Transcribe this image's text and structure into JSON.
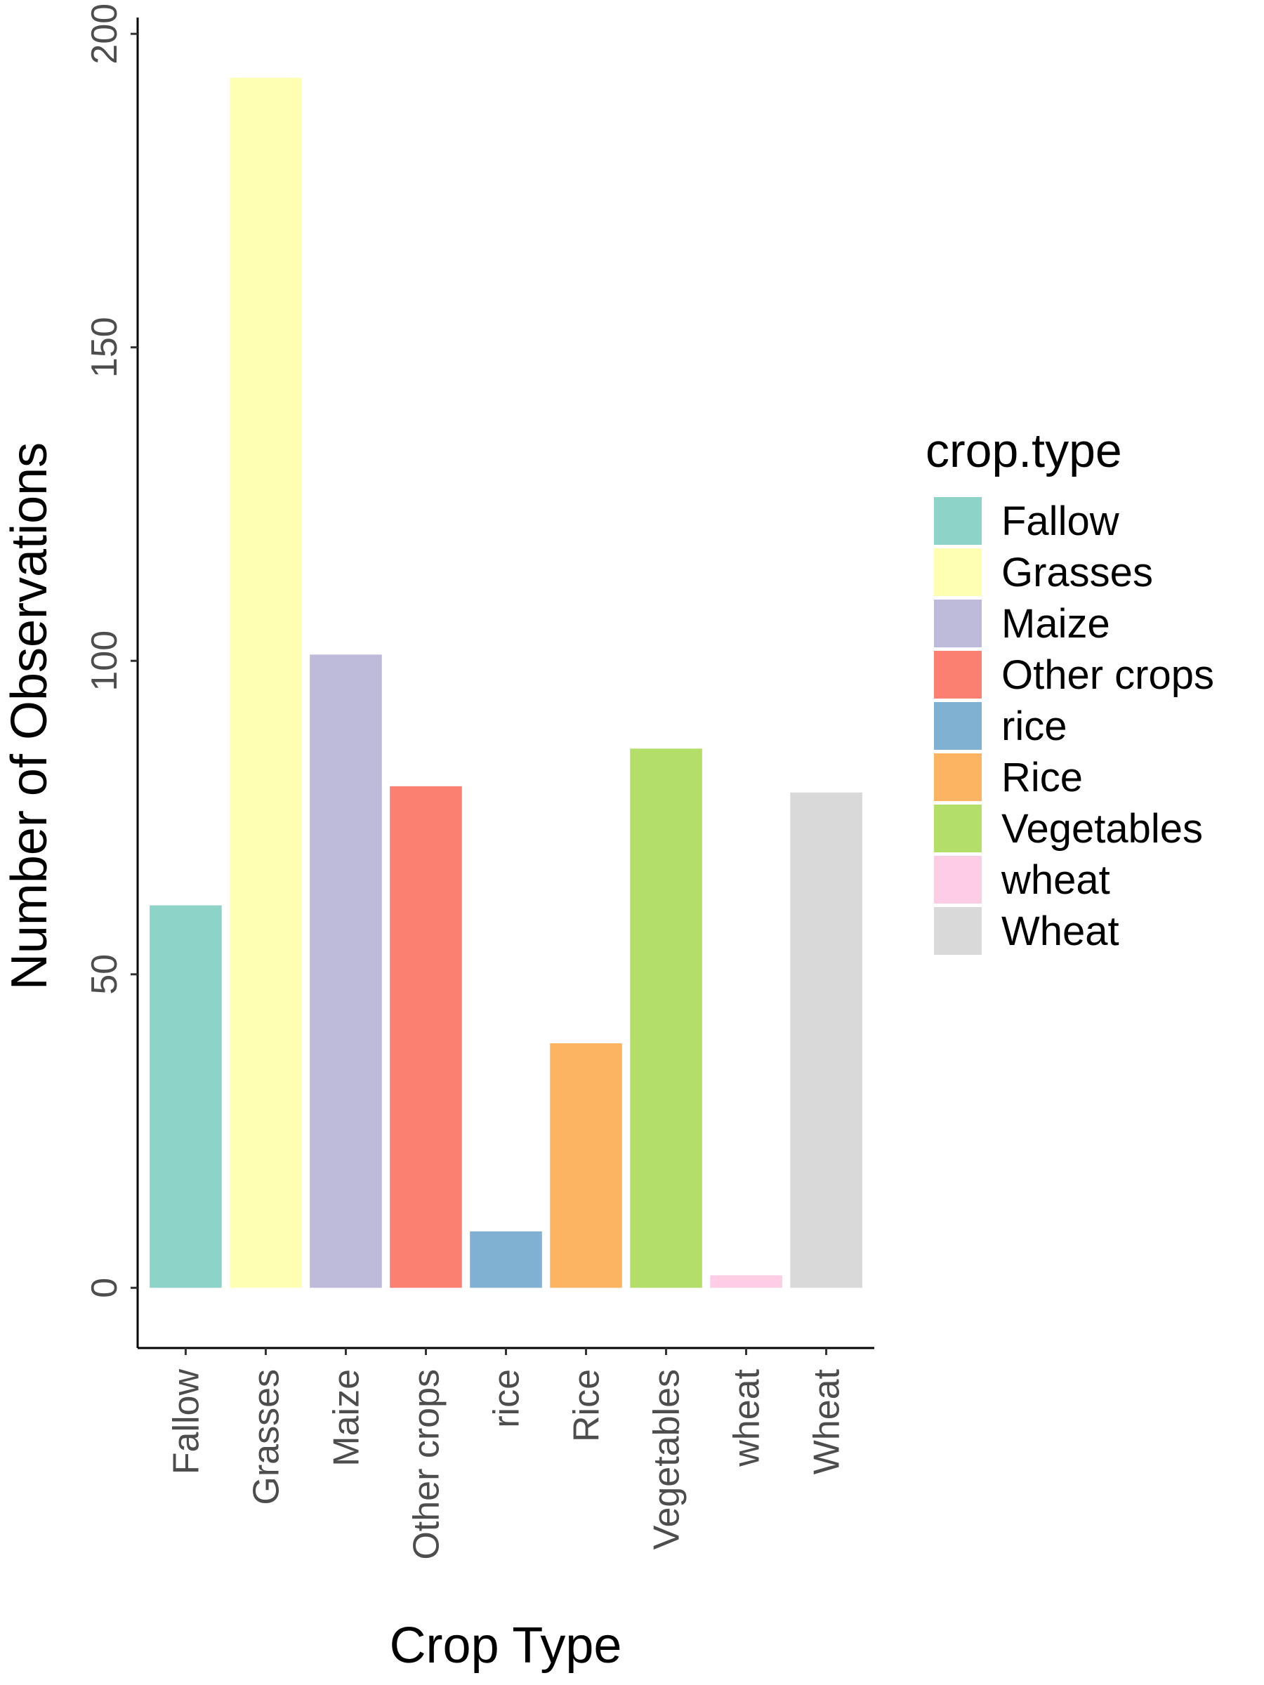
{
  "chart_data": {
    "type": "bar",
    "categories": [
      "Fallow",
      "Grasses",
      "Maize",
      "Other crops",
      "rice",
      "Rice",
      "Vegetables",
      "wheat",
      "Wheat"
    ],
    "values": [
      61,
      193,
      101,
      80,
      9,
      39,
      86,
      2,
      79
    ],
    "colors": [
      "#8DD3C7",
      "#FFFFB3",
      "#BEBADA",
      "#FB8072",
      "#80B1D3",
      "#FDB462",
      "#B3DE69",
      "#FCCDE5",
      "#D9D9D9"
    ],
    "title": "",
    "xlabel": "Crop Type",
    "ylabel": "Number of Observations",
    "ylim": [
      -9.6,
      202.6
    ],
    "yticks": [
      0,
      50,
      100,
      150,
      200
    ],
    "grid": false,
    "legend": {
      "title": "crop.type",
      "position": "right",
      "entries": [
        "Fallow",
        "Grasses",
        "Maize",
        "Other crops",
        "rice",
        "Rice",
        "Vegetables",
        "wheat",
        "Wheat"
      ]
    }
  }
}
